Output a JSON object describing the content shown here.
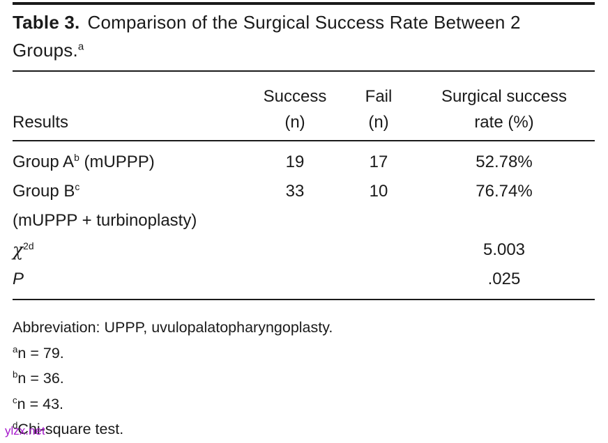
{
  "title": {
    "label": "Table 3.",
    "line1": "Comparison of the Surgical Success Rate Between 2",
    "line2": "Groups.",
    "marker": "a"
  },
  "table": {
    "header": {
      "results": "Results",
      "success_line1": "Success",
      "success_line2": "(n)",
      "fail_line1": "Fail",
      "fail_line2": "(n)",
      "rate_line1": "Surgical success",
      "rate_line2": "rate (%)"
    },
    "rows": {
      "group_a": {
        "label": "Group A",
        "sup": "b",
        "suffix": " (mUPPP)",
        "success": "19",
        "fail": "17",
        "rate": "52.78%"
      },
      "group_b": {
        "label": "Group B",
        "sup": "c",
        "suffix": "",
        "success": "33",
        "fail": "10",
        "rate": "76.74%"
      },
      "group_b_cont": {
        "label": "(mUPPP + turbinoplasty)"
      },
      "chi": {
        "label": "χ",
        "sup": "2d",
        "rate": "5.003"
      },
      "p": {
        "label": "P",
        "rate": ".025"
      }
    }
  },
  "footnotes": {
    "abbreviation": "Abbreviation: UPPP, uvulopalatopharyngoplasty.",
    "a": {
      "sup": "a",
      "text": "n = 79."
    },
    "b": {
      "sup": "b",
      "text": "n = 36."
    },
    "c": {
      "sup": "c",
      "text": "n = 43."
    },
    "d": {
      "sup": "d",
      "text": "Chi-square test."
    }
  },
  "watermark": {
    "text": "ylzx.net",
    "color": "#a517cb"
  },
  "colors": {
    "text": "#1a1a1a",
    "rule": "#1a1a1a",
    "background": "#ffffff"
  }
}
